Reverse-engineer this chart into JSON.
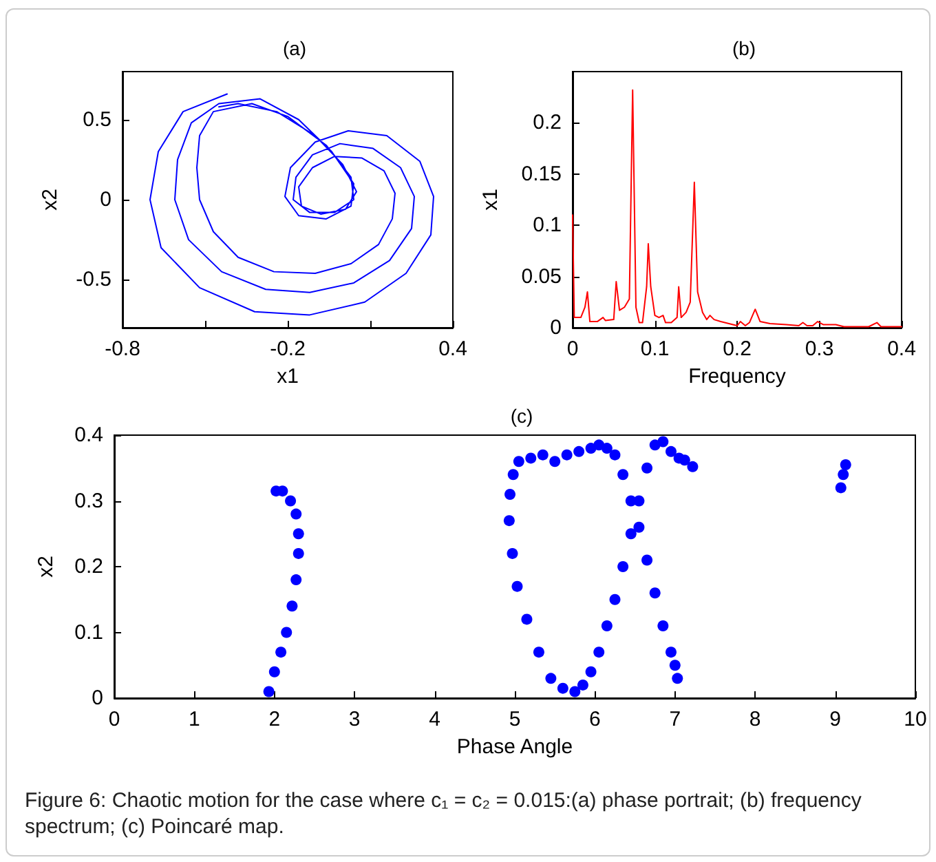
{
  "chart_data": [
    {
      "type": "line",
      "title": "(a)",
      "xlabel": "x1",
      "ylabel": "x2",
      "marker": "none",
      "line_style": "solid",
      "xlim": [
        -0.8,
        0.4
      ],
      "xticks": [
        -0.8,
        {
          "value": -0.5,
          "label": null
        },
        -0.2,
        {
          "value": 0.1,
          "label": null
        },
        0.4
      ],
      "ylim": [
        -0.8,
        0.8
      ],
      "yticks": [
        -0.5,
        0,
        0.5
      ],
      "series": [
        {
          "color": "#0000ff",
          "x": [
            -0.42,
            -0.58,
            -0.67,
            -0.7,
            -0.66,
            -0.52,
            -0.32,
            -0.12,
            0.08,
            0.23,
            0.32,
            0.33,
            0.28,
            0.16,
            0.02,
            -0.1,
            -0.19,
            -0.21,
            -0.16,
            -0.06,
            0.03,
            0.04,
            -0.04,
            -0.16,
            -0.3,
            -0.45,
            -0.55,
            -0.6,
            -0.61,
            -0.56,
            -0.44,
            -0.28,
            -0.12,
            0.04,
            0.17,
            0.25,
            0.26,
            0.21,
            0.11,
            -0.01,
            -0.11,
            -0.17,
            -0.18,
            -0.12,
            -0.03,
            0.04,
            0.03,
            -0.06,
            -0.2,
            -0.33,
            -0.47,
            -0.52,
            -0.53,
            -0.52,
            -0.47,
            -0.38,
            -0.25,
            -0.1,
            0.03,
            0.13,
            0.18,
            0.19,
            0.15,
            0.07,
            -0.03,
            -0.11,
            -0.16,
            -0.15,
            -0.08,
            0.01,
            0.05,
            0.0,
            -0.1,
            -0.24,
            -0.38,
            -0.45
          ],
          "values": [
            0.66,
            0.55,
            0.3,
            0,
            -0.3,
            -0.55,
            -0.7,
            -0.72,
            -0.64,
            -0.46,
            -0.22,
            0.02,
            0.24,
            0.4,
            0.43,
            0.36,
            0.2,
            0.02,
            -0.1,
            -0.12,
            -0.04,
            0.1,
            0.3,
            0.5,
            0.63,
            0.6,
            0.48,
            0.25,
            0,
            -0.25,
            -0.45,
            -0.56,
            -0.58,
            -0.52,
            -0.38,
            -0.18,
            0.02,
            0.2,
            0.32,
            0.35,
            0.28,
            0.14,
            0.0,
            -0.08,
            -0.08,
            0.0,
            0.14,
            0.34,
            0.52,
            0.6,
            0.55,
            0.4,
            0.2,
            0,
            -0.2,
            -0.36,
            -0.45,
            -0.46,
            -0.4,
            -0.28,
            -0.12,
            0.04,
            0.18,
            0.26,
            0.27,
            0.2,
            0.08,
            -0.04,
            -0.09,
            -0.06,
            0.05,
            0.22,
            0.4,
            0.55,
            0.6,
            0.58
          ]
        }
      ]
    },
    {
      "type": "line",
      "title": "(b)",
      "xlabel": "Frequency",
      "ylabel": "x1",
      "marker": "none",
      "line_style": "solid",
      "xlim": [
        0,
        0.4
      ],
      "xticks": [
        0,
        0.1,
        0.2,
        0.3,
        0.4
      ],
      "ylim": [
        0,
        0.25
      ],
      "yticks": [
        0,
        0.05,
        0.1,
        0.15,
        0.2
      ],
      "series": [
        {
          "color": "#ff0000",
          "x": [
            0,
            0.002,
            0.01,
            0.015,
            0.018,
            0.021,
            0.03,
            0.037,
            0.04,
            0.05,
            0.053,
            0.057,
            0.063,
            0.069,
            0.073,
            0.077,
            0.081,
            0.085,
            0.09,
            0.092,
            0.095,
            0.1,
            0.105,
            0.11,
            0.113,
            0.12,
            0.127,
            0.129,
            0.132,
            0.138,
            0.143,
            0.148,
            0.152,
            0.158,
            0.163,
            0.167,
            0.172,
            0.18,
            0.19,
            0.2,
            0.204,
            0.21,
            0.215,
            0.222,
            0.228,
            0.24,
            0.26,
            0.275,
            0.28,
            0.285,
            0.292,
            0.298,
            0.305,
            0.32,
            0.33,
            0.36,
            0.37,
            0.375,
            0.4
          ],
          "values": [
            0.11,
            0.01,
            0.01,
            0.02,
            0.035,
            0.006,
            0.006,
            0.01,
            0.007,
            0.008,
            0.045,
            0.017,
            0.02,
            0.028,
            0.232,
            0.02,
            0.005,
            0.005,
            0.04,
            0.082,
            0.04,
            0.012,
            0.01,
            0.012,
            0.005,
            0.005,
            0.01,
            0.04,
            0.01,
            0.015,
            0.025,
            0.142,
            0.035,
            0.015,
            0.008,
            0.012,
            0.008,
            0.006,
            0.004,
            0.002,
            0.006,
            0.002,
            0.005,
            0.018,
            0.006,
            0.004,
            0.003,
            0.002,
            0.005,
            0.002,
            0.002,
            0.006,
            0.003,
            0.003,
            0.001,
            0.001,
            0.005,
            0.001,
            0.001
          ]
        }
      ]
    },
    {
      "type": "scatter",
      "title": "(c)",
      "xlabel": "Phase Angle",
      "ylabel": "x2",
      "marker": "circle",
      "xlim": [
        0,
        10
      ],
      "xticks": [
        0,
        1,
        2,
        3,
        4,
        5,
        6,
        7,
        8,
        9,
        10
      ],
      "ylim": [
        0,
        0.4
      ],
      "yticks": [
        0,
        0.1,
        0.2,
        0.3,
        0.4
      ],
      "annotations": [
        "Figure 6: Chaotic motion for the case where c₁ = c₂ = 0.015:(a) phase portrait; (b) frequency spectrum; (c) Poincaré map."
      ],
      "series": [
        {
          "color": "#0000ff",
          "x": [
            1.93,
            2.0,
            2.08,
            2.15,
            2.22,
            2.27,
            2.3,
            2.3,
            2.27,
            2.2,
            2.1,
            2.02,
            5.75,
            5.6,
            5.45,
            5.3,
            5.15,
            5.03,
            4.97,
            4.93,
            4.94,
            4.98,
            5.05,
            5.2,
            5.35,
            5.5,
            5.65,
            5.8,
            5.95,
            6.05,
            6.15,
            6.25,
            6.35,
            6.45,
            6.55,
            6.65,
            6.75,
            6.85,
            6.95,
            7.0,
            7.03,
            5.85,
            5.95,
            6.05,
            6.15,
            6.25,
            6.35,
            6.45,
            6.55,
            6.65,
            6.75,
            6.85,
            6.95,
            7.05,
            7.12,
            7.22,
            9.07,
            9.1,
            9.13
          ],
          "values": [
            0.01,
            0.04,
            0.07,
            0.1,
            0.14,
            0.18,
            0.22,
            0.25,
            0.28,
            0.3,
            0.315,
            0.315,
            0.01,
            0.015,
            0.03,
            0.07,
            0.12,
            0.17,
            0.22,
            0.27,
            0.31,
            0.34,
            0.36,
            0.365,
            0.37,
            0.36,
            0.37,
            0.375,
            0.38,
            0.385,
            0.38,
            0.37,
            0.34,
            0.3,
            0.26,
            0.21,
            0.16,
            0.11,
            0.07,
            0.05,
            0.03,
            0.02,
            0.04,
            0.07,
            0.11,
            0.15,
            0.2,
            0.25,
            0.3,
            0.35,
            0.385,
            0.39,
            0.375,
            0.365,
            0.362,
            0.352,
            0.32,
            0.34,
            0.355
          ]
        }
      ]
    }
  ]
}
